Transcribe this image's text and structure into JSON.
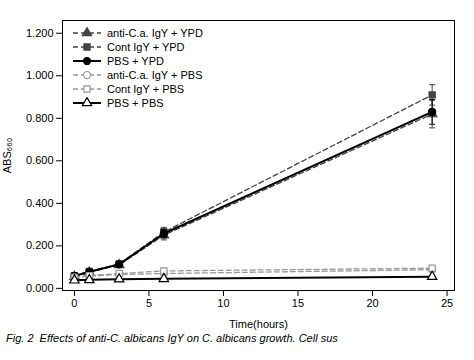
{
  "chart_data": {
    "type": "line",
    "x": [
      0,
      1,
      3,
      6,
      24
    ],
    "series": [
      {
        "name": "anti-C.a. IgY + YPD",
        "color": "#444444",
        "line_style": "dashed",
        "marker": "triangle",
        "values": [
          0.055,
          0.075,
          0.11,
          0.25,
          0.82
        ],
        "errors": [
          0.008,
          0.01,
          0.012,
          0.022,
          0.065
        ]
      },
      {
        "name": "Cont IgY + YPD",
        "color": "#444444",
        "line_style": "dashed",
        "marker": "square",
        "values": [
          0.06,
          0.08,
          0.115,
          0.265,
          0.91
        ],
        "errors": [
          0.006,
          0.009,
          0.012,
          0.022,
          0.048
        ]
      },
      {
        "name": "PBS + YPD",
        "color": "#000000",
        "line_style": "solid",
        "marker": "circle",
        "values": [
          0.058,
          0.078,
          0.113,
          0.258,
          0.83
        ],
        "errors": [
          0.006,
          0.008,
          0.012,
          0.02,
          0.058
        ]
      },
      {
        "name": "anti-C.a. IgY + PBS",
        "color": "#999999",
        "line_style": "dashed",
        "marker": "circle_open",
        "values": [
          0.052,
          0.058,
          0.065,
          0.07,
          0.088
        ],
        "errors": [
          0.004,
          0.005,
          0.005,
          0.006,
          0.007
        ]
      },
      {
        "name": "Cont IgY + PBS",
        "color": "#999999",
        "line_style": "dashed",
        "marker": "square_open",
        "values": [
          0.05,
          0.06,
          0.07,
          0.082,
          0.095
        ],
        "errors": [
          0.004,
          0.005,
          0.005,
          0.006,
          0.008
        ]
      },
      {
        "name": "PBS + PBS",
        "color": "#000000",
        "line_style": "solid",
        "marker": "triangle_open",
        "values": [
          0.038,
          0.04,
          0.043,
          0.045,
          0.055
        ],
        "errors": [
          0.003,
          0.003,
          0.004,
          0.004,
          0.005
        ]
      }
    ],
    "xlabel": "Time(hours)",
    "ylabel": "ABS₆₆₀",
    "caption": "Fig. 2  Effects of anti-C. albicans IgY on C. albicans growth. Cell sus",
    "xlim": [
      -0.8,
      25.5
    ],
    "ylim": [
      -0.01,
      1.26
    ],
    "xticks": [
      0,
      5,
      10,
      15,
      20,
      25
    ],
    "yticks": [
      {
        "value": 0,
        "label": "0.000"
      },
      {
        "value": 0.2,
        "label": "0.200"
      },
      {
        "value": 0.4,
        "label": "0.400"
      },
      {
        "value": 0.6,
        "label": "0.600"
      },
      {
        "value": 0.8,
        "label": "0.800"
      },
      {
        "value": 1,
        "label": "1.000"
      },
      {
        "value": 1.2,
        "label": "1.200"
      }
    ],
    "grid": false,
    "legend": "upper left"
  }
}
